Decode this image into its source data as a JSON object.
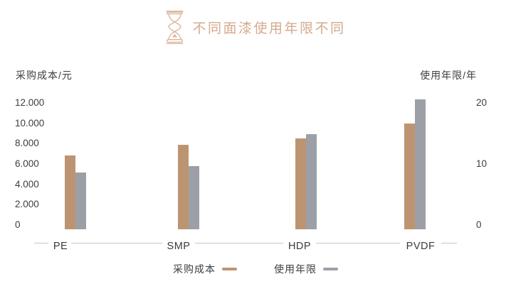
{
  "header": {
    "title": "不同面漆使用年限不同",
    "icon": "hourglass-icon"
  },
  "chart_data": {
    "type": "bar",
    "title": "不同面漆使用年限不同",
    "categories": [
      "PE",
      "SMP",
      "HDP",
      "PVDF"
    ],
    "series": [
      {
        "key": "cost",
        "name": "采购成本",
        "axis": "left",
        "color": "#bd9471",
        "values": [
          7000,
          8000,
          8600,
          10000
        ]
      },
      {
        "key": "life",
        "name": "使用年限",
        "axis": "right",
        "color": "#9ca0a6",
        "values": [
          9,
          10,
          15,
          20.5
        ]
      }
    ],
    "left_axis": {
      "label": "采购成本/元",
      "min": 0,
      "max": 12000,
      "ticks": [
        "12.000",
        "10.000",
        "8.000",
        "6.000",
        "4.000",
        "2.000",
        "0"
      ]
    },
    "right_axis": {
      "label": "使用年限/年",
      "min": 0,
      "max": 20,
      "ticks": [
        "20",
        "10",
        "0"
      ]
    },
    "legend": [
      {
        "label": "采购成本",
        "color": "#bd9471"
      },
      {
        "label": "使用年限",
        "color": "#9ca0a6"
      }
    ],
    "grid": false,
    "legend_position": "bottom"
  },
  "colors": {
    "title_accent": "#d5aa8c",
    "bar_tan": "#bd9471",
    "bar_gray": "#9ca0a6",
    "text": "#3d3d3d",
    "axis_line": "#c7c7c7",
    "background": "#ffffff"
  }
}
